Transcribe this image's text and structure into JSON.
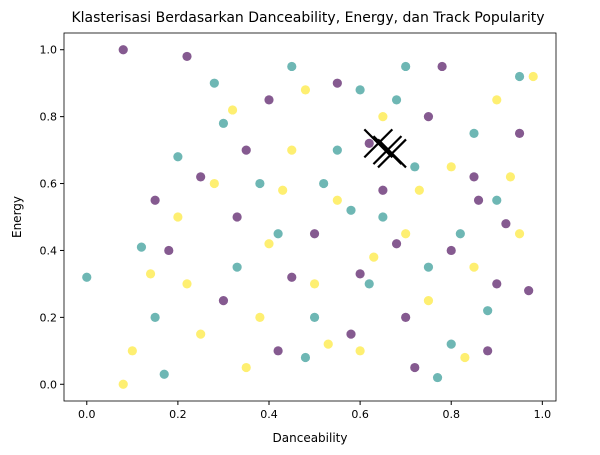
{
  "chart_data": {
    "type": "scatter",
    "title": "Klasterisasi Berdasarkan Danceability, Energy, dan Track Popularity",
    "xlabel": "Danceability",
    "ylabel": "Energy",
    "xlim": [
      -0.05,
      1.03
    ],
    "ylim": [
      -0.05,
      1.05
    ],
    "xticks": [
      "0.0",
      "0.2",
      "0.4",
      "0.6",
      "0.8",
      "1.0"
    ],
    "yticks": [
      "0.0",
      "0.2",
      "0.4",
      "0.6",
      "0.8",
      "1.0"
    ],
    "grid": false,
    "colors": {
      "cluster_0": "#440154",
      "cluster_1": "#21918c",
      "cluster_2": "#fde725",
      "centroid": "#000000"
    },
    "series": [
      {
        "cluster": 0,
        "values": [
          [
            0.08,
            1.0
          ],
          [
            0.15,
            0.55
          ],
          [
            0.22,
            0.98
          ],
          [
            0.3,
            0.25
          ],
          [
            0.35,
            0.7
          ],
          [
            0.42,
            0.1
          ],
          [
            0.5,
            0.45
          ],
          [
            0.55,
            0.9
          ],
          [
            0.6,
            0.33
          ],
          [
            0.65,
            0.58
          ],
          [
            0.7,
            0.2
          ],
          [
            0.75,
            0.8
          ],
          [
            0.8,
            0.4
          ],
          [
            0.85,
            0.62
          ],
          [
            0.88,
            0.1
          ],
          [
            0.92,
            0.48
          ],
          [
            0.95,
            0.75
          ],
          [
            0.97,
            0.28
          ],
          [
            0.25,
            0.62
          ],
          [
            0.4,
            0.85
          ],
          [
            0.45,
            0.32
          ],
          [
            0.58,
            0.15
          ],
          [
            0.68,
            0.42
          ],
          [
            0.78,
            0.95
          ],
          [
            0.9,
            0.3
          ],
          [
            0.18,
            0.4
          ],
          [
            0.33,
            0.5
          ],
          [
            0.62,
            0.72
          ],
          [
            0.72,
            0.05
          ],
          [
            0.86,
            0.55
          ]
        ]
      },
      {
        "cluster": 1,
        "values": [
          [
            0.0,
            0.32
          ],
          [
            0.12,
            0.41
          ],
          [
            0.15,
            0.2
          ],
          [
            0.17,
            0.03
          ],
          [
            0.2,
            0.68
          ],
          [
            0.28,
            0.9
          ],
          [
            0.33,
            0.35
          ],
          [
            0.38,
            0.6
          ],
          [
            0.45,
            0.95
          ],
          [
            0.5,
            0.2
          ],
          [
            0.55,
            0.7
          ],
          [
            0.6,
            0.88
          ],
          [
            0.65,
            0.5
          ],
          [
            0.7,
            0.95
          ],
          [
            0.75,
            0.35
          ],
          [
            0.8,
            0.12
          ],
          [
            0.85,
            0.75
          ],
          [
            0.9,
            0.55
          ],
          [
            0.95,
            0.92
          ],
          [
            0.77,
            0.02
          ],
          [
            0.42,
            0.45
          ],
          [
            0.52,
            0.6
          ],
          [
            0.62,
            0.3
          ],
          [
            0.72,
            0.65
          ],
          [
            0.82,
            0.45
          ],
          [
            0.3,
            0.78
          ],
          [
            0.48,
            0.08
          ],
          [
            0.58,
            0.52
          ],
          [
            0.68,
            0.85
          ],
          [
            0.88,
            0.22
          ]
        ]
      },
      {
        "cluster": 2,
        "values": [
          [
            0.08,
            0.0
          ],
          [
            0.1,
            0.1
          ],
          [
            0.14,
            0.33
          ],
          [
            0.2,
            0.5
          ],
          [
            0.25,
            0.15
          ],
          [
            0.28,
            0.6
          ],
          [
            0.35,
            0.05
          ],
          [
            0.4,
            0.42
          ],
          [
            0.45,
            0.7
          ],
          [
            0.5,
            0.3
          ],
          [
            0.55,
            0.55
          ],
          [
            0.6,
            0.1
          ],
          [
            0.65,
            0.8
          ],
          [
            0.7,
            0.45
          ],
          [
            0.75,
            0.25
          ],
          [
            0.8,
            0.65
          ],
          [
            0.85,
            0.35
          ],
          [
            0.9,
            0.85
          ],
          [
            0.95,
            0.45
          ],
          [
            0.98,
            0.92
          ],
          [
            0.22,
            0.3
          ],
          [
            0.32,
            0.82
          ],
          [
            0.38,
            0.2
          ],
          [
            0.48,
            0.88
          ],
          [
            0.53,
            0.12
          ],
          [
            0.63,
            0.38
          ],
          [
            0.73,
            0.58
          ],
          [
            0.83,
            0.08
          ],
          [
            0.93,
            0.62
          ],
          [
            0.43,
            0.58
          ]
        ]
      }
    ],
    "centroids": [
      [
        0.64,
        0.72
      ],
      [
        0.67,
        0.69
      ],
      [
        0.66,
        0.7
      ]
    ]
  }
}
